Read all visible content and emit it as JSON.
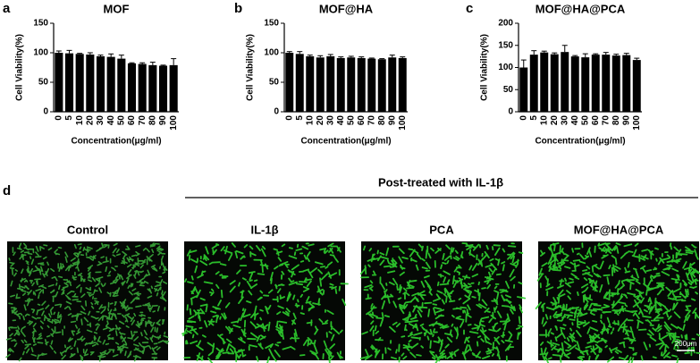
{
  "chart_data": [
    {
      "type": "bar",
      "panel_label": "a",
      "title": "MOF",
      "x_label": "Concentration(μg/ml)",
      "y_label": "Cell Viability(%)",
      "categories": [
        "0",
        "5",
        "10",
        "20",
        "30",
        "40",
        "50",
        "60",
        "70",
        "80",
        "90",
        "100"
      ],
      "values": [
        100,
        99,
        98,
        97,
        94,
        93,
        90,
        82,
        81,
        79,
        78,
        79
      ],
      "errors": [
        3,
        5,
        1,
        3,
        2,
        5,
        6,
        1,
        2,
        5,
        1,
        11
      ],
      "color": "#000000",
      "ylim": [
        0,
        150
      ],
      "yticks": [
        0,
        50,
        100,
        150
      ]
    },
    {
      "type": "bar",
      "panel_label": "b",
      "title": "MOF@HA",
      "x_label": "Concentration(μg/ml)",
      "y_label": "Cell Viability(%)",
      "categories": [
        "0",
        "5",
        "10",
        "20",
        "30",
        "40",
        "50",
        "60",
        "70",
        "80",
        "90",
        "100"
      ],
      "values": [
        100,
        98,
        94,
        92,
        94,
        91,
        92,
        91,
        90,
        89,
        92,
        91
      ],
      "errors": [
        2,
        4,
        2,
        3,
        3,
        2,
        2,
        2,
        1,
        1,
        4,
        2
      ],
      "color": "#000000",
      "ylim": [
        0,
        150
      ],
      "yticks": [
        0,
        50,
        100,
        150
      ]
    },
    {
      "type": "bar",
      "panel_label": "c",
      "title": "MOF@HA@PCA",
      "x_label": "Concentration(μg/ml)",
      "y_label": "Cell Viability(%)",
      "categories": [
        "0",
        "5",
        "10",
        "20",
        "30",
        "40",
        "50",
        "60",
        "70",
        "80",
        "90",
        "100"
      ],
      "values": [
        100,
        129,
        134,
        130,
        135,
        125,
        123,
        129,
        129,
        127,
        128,
        117
      ],
      "errors": [
        17,
        9,
        3,
        3,
        15,
        2,
        8,
        2,
        5,
        3,
        4,
        4
      ],
      "color": "#000000",
      "ylim": [
        0,
        200
      ],
      "yticks": [
        0,
        50,
        100,
        150,
        200
      ]
    }
  ],
  "panel_d": {
    "label": "d",
    "group_label": "Post-treated with IL-1β",
    "images": [
      {
        "title": "Control"
      },
      {
        "title": "IL-1β"
      },
      {
        "title": "PCA"
      },
      {
        "title": "MOF@HA@PCA"
      }
    ],
    "scale_bar": "200μm"
  }
}
